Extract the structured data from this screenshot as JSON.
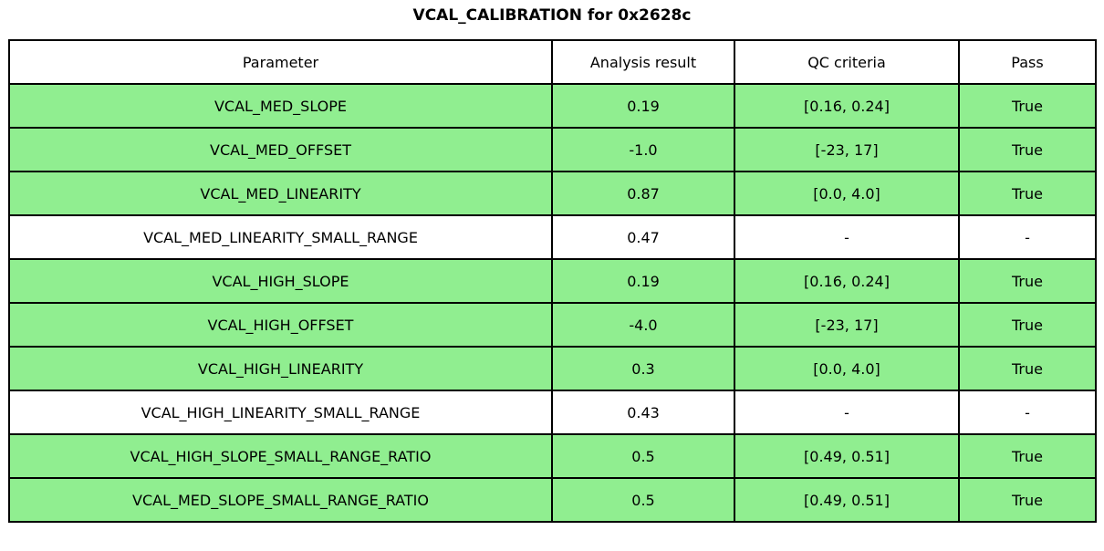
{
  "title": "VCAL_CALIBRATION for 0x2628c",
  "colors": {
    "pass_row_background": "#90ee90",
    "plain_row_background": "#ffffff",
    "border": "#000000",
    "text": "#000000"
  },
  "table": {
    "columns": [
      "Parameter",
      "Analysis result",
      "QC criteria",
      "Pass"
    ],
    "rows": [
      {
        "parameter": "VCAL_MED_SLOPE",
        "result": "0.19",
        "criteria": "[0.16, 0.24]",
        "pass": "True",
        "highlight": true
      },
      {
        "parameter": "VCAL_MED_OFFSET",
        "result": "-1.0",
        "criteria": "[-23, 17]",
        "pass": "True",
        "highlight": true
      },
      {
        "parameter": "VCAL_MED_LINEARITY",
        "result": "0.87",
        "criteria": "[0.0, 4.0]",
        "pass": "True",
        "highlight": true
      },
      {
        "parameter": "VCAL_MED_LINEARITY_SMALL_RANGE",
        "result": "0.47",
        "criteria": "-",
        "pass": "-",
        "highlight": false
      },
      {
        "parameter": "VCAL_HIGH_SLOPE",
        "result": "0.19",
        "criteria": "[0.16, 0.24]",
        "pass": "True",
        "highlight": true
      },
      {
        "parameter": "VCAL_HIGH_OFFSET",
        "result": "-4.0",
        "criteria": "[-23, 17]",
        "pass": "True",
        "highlight": true
      },
      {
        "parameter": "VCAL_HIGH_LINEARITY",
        "result": "0.3",
        "criteria": "[0.0, 4.0]",
        "pass": "True",
        "highlight": true
      },
      {
        "parameter": "VCAL_HIGH_LINEARITY_SMALL_RANGE",
        "result": "0.43",
        "criteria": "-",
        "pass": "-",
        "highlight": false
      },
      {
        "parameter": "VCAL_HIGH_SLOPE_SMALL_RANGE_RATIO",
        "result": "0.5",
        "criteria": "[0.49, 0.51]",
        "pass": "True",
        "highlight": true
      },
      {
        "parameter": "VCAL_MED_SLOPE_SMALL_RANGE_RATIO",
        "result": "0.5",
        "criteria": "[0.49, 0.51]",
        "pass": "True",
        "highlight": true
      }
    ]
  }
}
